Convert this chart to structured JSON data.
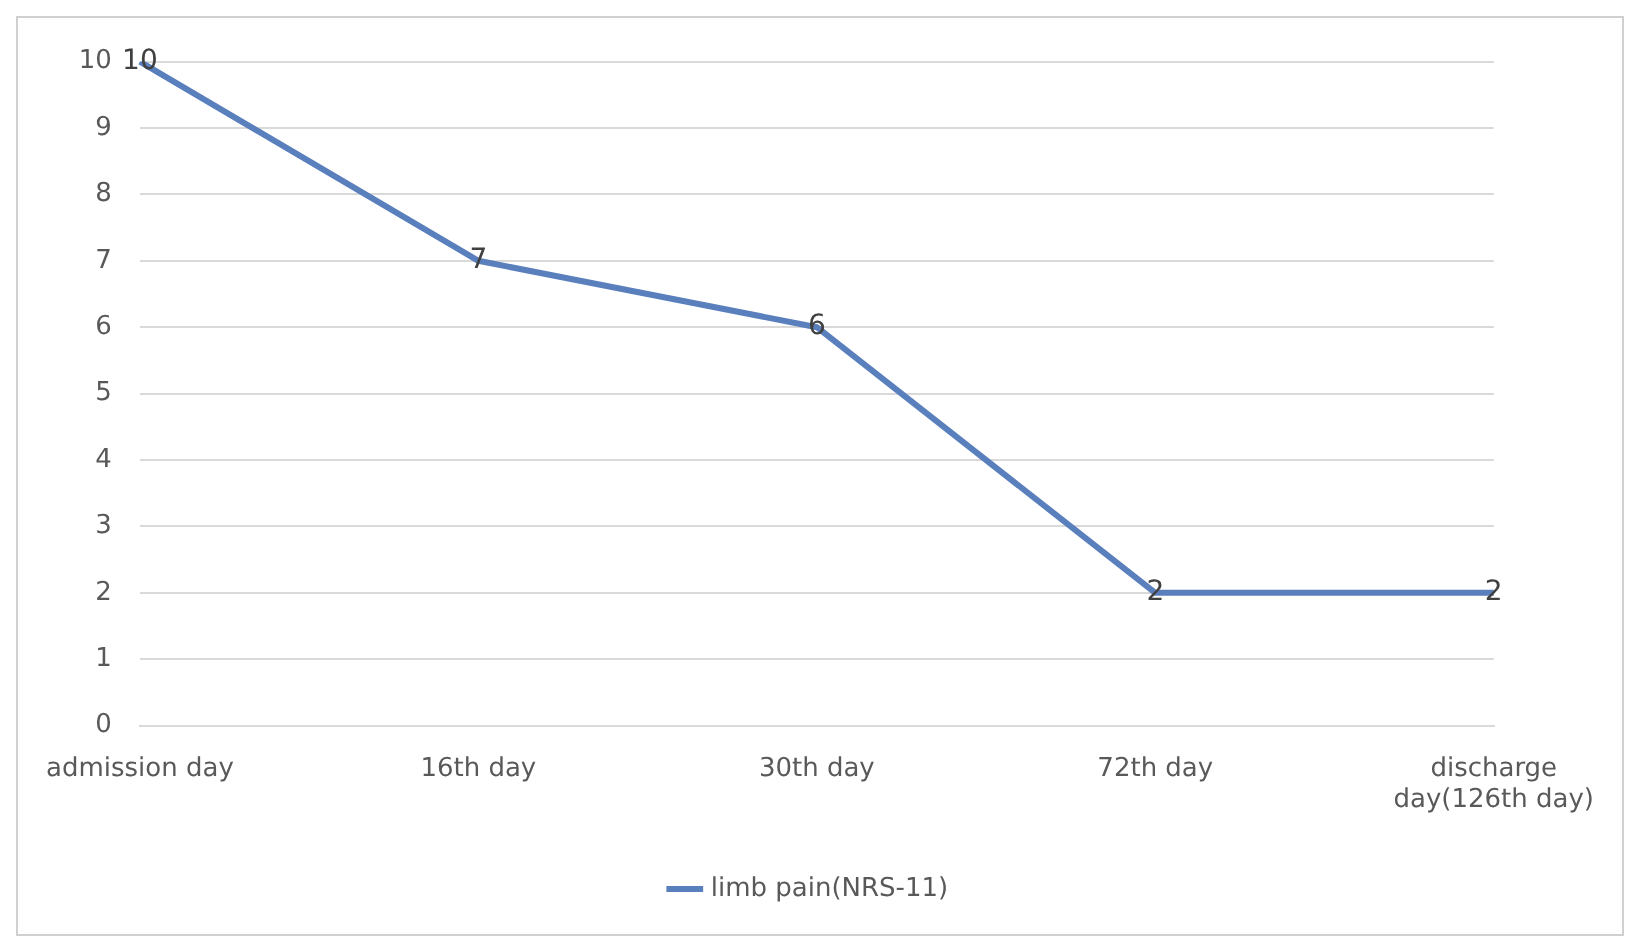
{
  "chart_data": {
    "type": "line",
    "categories": [
      "admission day",
      "16th day",
      "30th day",
      "72th day",
      "discharge day(126th day)"
    ],
    "series": [
      {
        "name": "limb pain(NRS-11)",
        "color": "#5a7fbd",
        "values": [
          10,
          7,
          6,
          2,
          2
        ]
      }
    ],
    "ylim": [
      0,
      10
    ],
    "yticks": [
      0,
      1,
      2,
      3,
      4,
      5,
      6,
      7,
      8,
      9,
      10
    ],
    "grid": "y",
    "legend": "bottom",
    "marker": "none",
    "line_style": "solid",
    "data_labels": true
  }
}
